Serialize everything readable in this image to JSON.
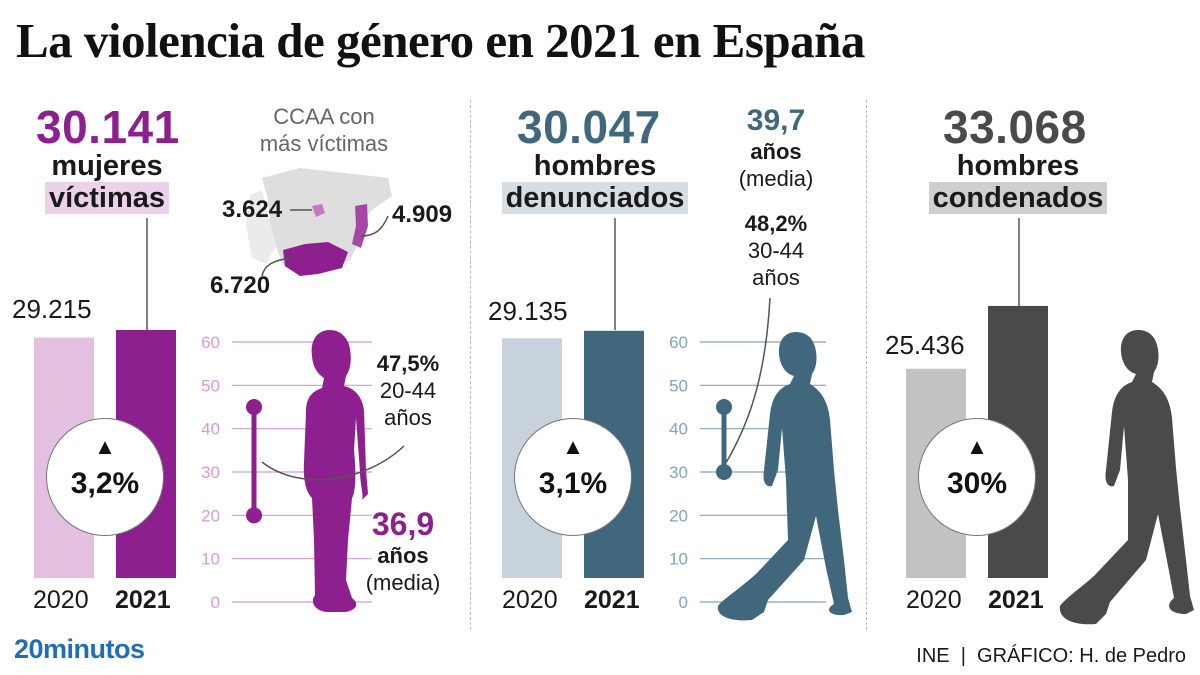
{
  "title": "La violencia de género en 2021 en España",
  "panels": {
    "victims": {
      "big": "30.141",
      "line1": "mujeres",
      "line2": "víctimas",
      "prev_label": "29.215",
      "change": "3,2%",
      "map_title_1": "CCAA con",
      "map_title_2": "más víctimas",
      "map_values": [
        "3.624",
        "4.909",
        "6.720"
      ],
      "range_pct": "47,5%",
      "range_ages": "20-44",
      "range_unit": "años",
      "mean_value": "36,9",
      "mean_unit": "años",
      "mean_label": "(media)"
    },
    "reported": {
      "big": "30.047",
      "line1": "hombres",
      "line2": "denunciados",
      "prev_label": "29.135",
      "change": "3,1%",
      "mean_value": "39,7",
      "mean_unit": "años",
      "mean_label": "(media)",
      "range_pct": "48,2%",
      "range_ages": "30-44",
      "range_unit": "años"
    },
    "convicted": {
      "big": "33.068",
      "line1": "hombres",
      "line2": "condenados",
      "prev_label": "25.436",
      "change": "30%"
    }
  },
  "age_axis_ticks": [
    "60",
    "50",
    "40",
    "30",
    "20",
    "10",
    "0"
  ],
  "year_labels": [
    "2020",
    "2021"
  ],
  "change_arrow": "▲",
  "source": "INE  |  GRÁFICO: H. de Pedro",
  "brand": "20minutos",
  "colors": {
    "purple": "#8e1f8e",
    "purple_light": "#e3bfe0",
    "purple_highlight": "#ead2ea",
    "teal": "#41677d",
    "teal_light": "#c7d2dc",
    "teal_highlight": "#d6dee4",
    "gray": "#4a4a4a",
    "gray_light": "#c2c2c2",
    "gray_highlight": "#cfcfcf",
    "brand_blue": "#1f6fb7"
  },
  "chart_data": [
    {
      "type": "bar",
      "title": "mujeres víctimas",
      "categories": [
        "2020",
        "2021"
      ],
      "values": [
        29215,
        30141
      ],
      "colors": [
        "#e3bfe0",
        "#8e1f8e"
      ],
      "change": "3,2%"
    },
    {
      "type": "bar",
      "title": "hombres denunciados",
      "categories": [
        "2020",
        "2021"
      ],
      "values": [
        29135,
        30047
      ],
      "colors": [
        "#c7d2dc",
        "#41677d"
      ],
      "change": "3,1%"
    },
    {
      "type": "bar",
      "title": "hombres condenados",
      "categories": [
        "2020",
        "2021"
      ],
      "values": [
        25436,
        33068
      ],
      "colors": [
        "#c2c2c2",
        "#4a4a4a"
      ],
      "change": "30%"
    },
    {
      "type": "range",
      "title": "edad mujeres víctimas",
      "ylim": [
        0,
        60
      ],
      "range": [
        20,
        45
      ],
      "share": "47,5%",
      "mean": 36.9
    },
    {
      "type": "range",
      "title": "edad hombres denunciados",
      "ylim": [
        0,
        60
      ],
      "range": [
        30,
        45
      ],
      "share": "48,2%",
      "mean": 39.7
    }
  ]
}
